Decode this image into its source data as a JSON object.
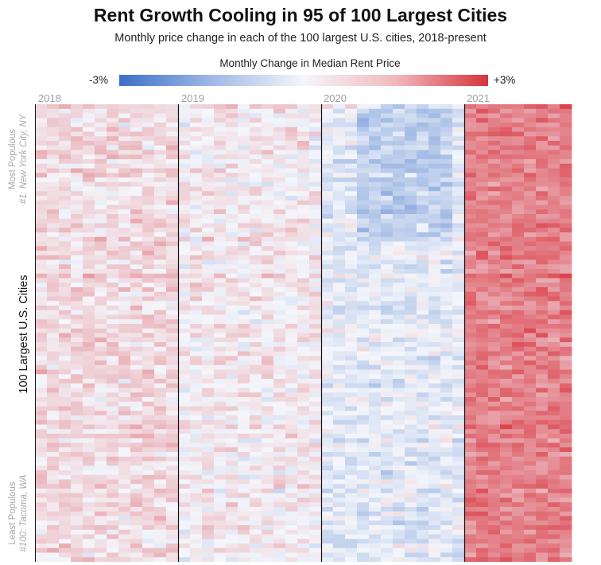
{
  "chart_data": {
    "type": "heatmap",
    "title": "Rent Growth Cooling in 95 of 100 Largest Cities",
    "subtitle": "Monthly price change in each of the 100 largest U.S. cities, 2018-present",
    "legend": {
      "title": "Monthly Change in Median Rent Price",
      "min_label": "-3%",
      "max_label": "+3%",
      "min_value": -3,
      "max_value": 3,
      "low_color": "#3b6fc8",
      "mid_color": "#f4f6fb",
      "high_color": "#d8323c"
    },
    "x_years": [
      "2018",
      "2019",
      "2020",
      "2021"
    ],
    "months_per_year": 12,
    "months_shown": 45,
    "rows": 100,
    "ylabel": "100 Largest U.S. Cities",
    "y_top_label": "Most Populous",
    "y_top_city": "#1: New York City, NY",
    "y_bottom_label": "Least Populous",
    "y_bottom_city": "#100: Tacoma, WA",
    "period_means": [
      0.45,
      0.2,
      -0.25,
      1.8
    ],
    "value_range": [
      -3,
      3
    ]
  }
}
